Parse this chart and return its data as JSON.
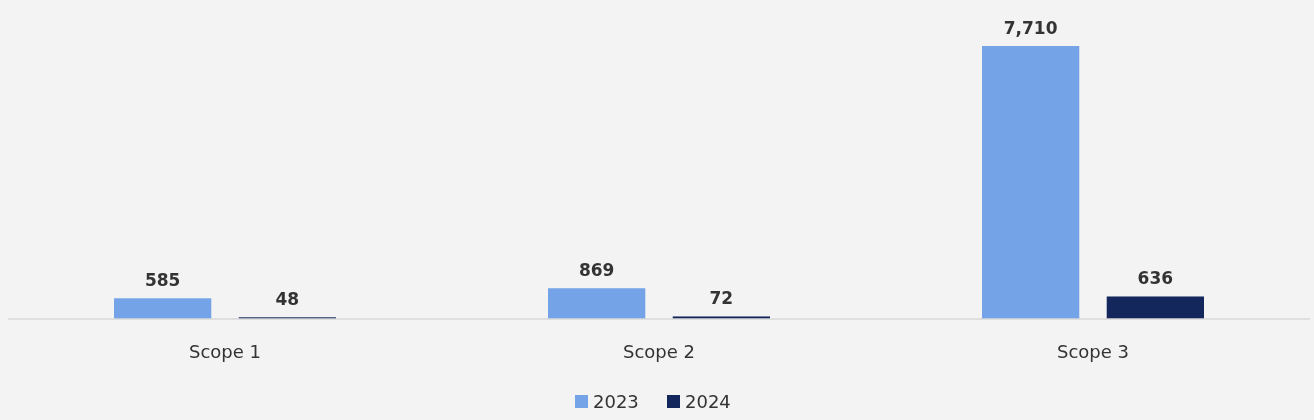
{
  "chart_data": {
    "type": "bar",
    "categories": [
      "Scope 1",
      "Scope 2",
      "Scope 3"
    ],
    "series": [
      {
        "name": "2023",
        "color": "#74a3e8",
        "values": [
          585,
          869,
          7710
        ],
        "value_labels": [
          "585",
          "869",
          "7,710"
        ]
      },
      {
        "name": "2024",
        "color": "#13275c",
        "values": [
          48,
          72,
          636
        ],
        "value_labels": [
          "48",
          "72",
          "636"
        ]
      }
    ],
    "legend": "bottom"
  }
}
